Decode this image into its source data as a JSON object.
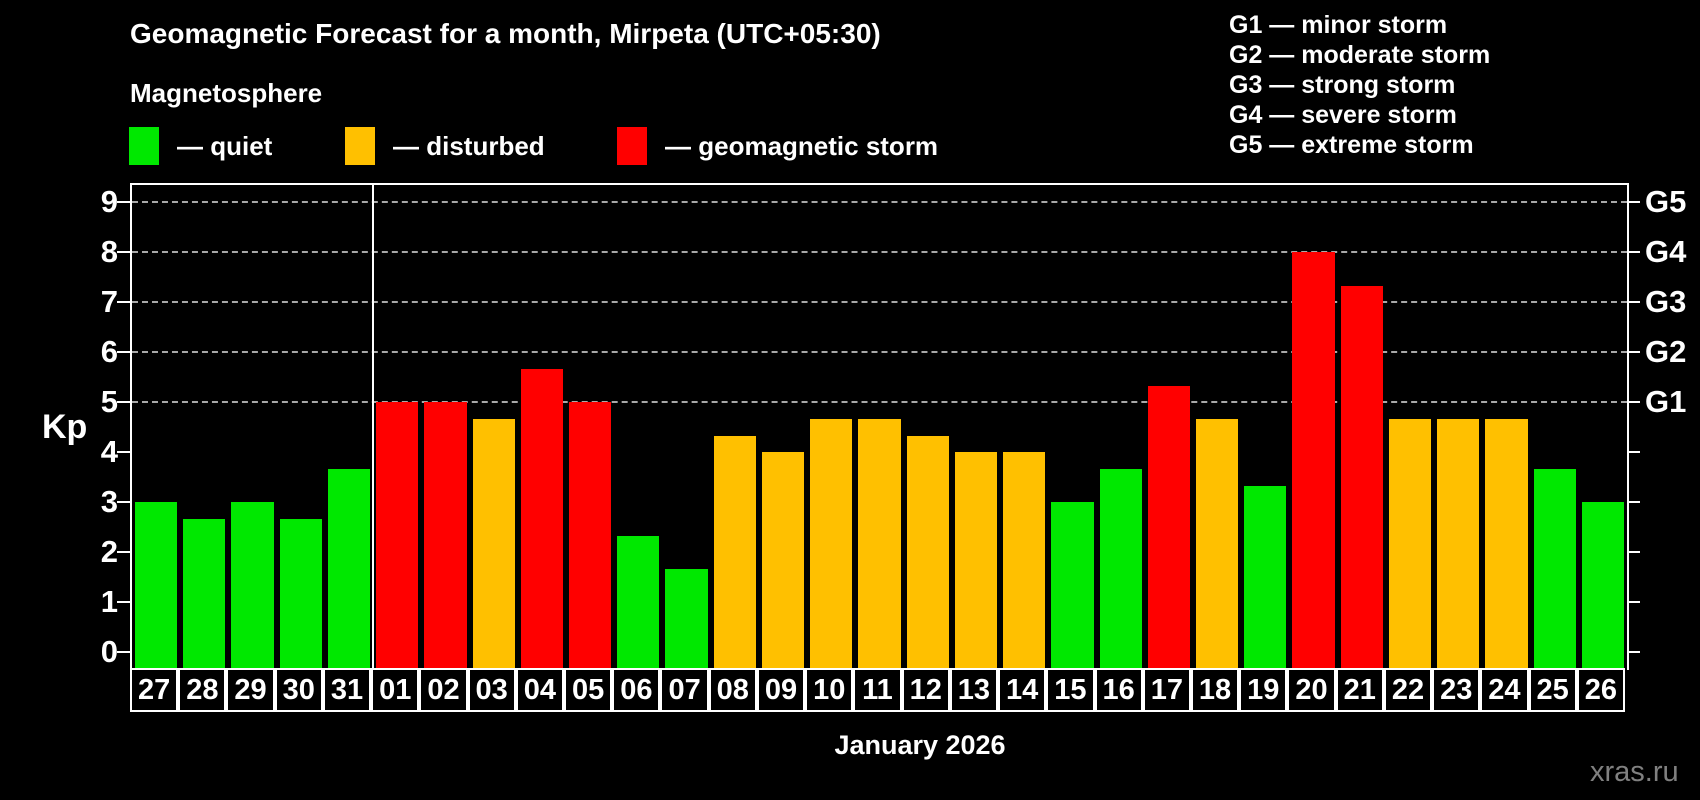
{
  "header": {
    "title": "Geomagnetic Forecast for a month, Mirpeta (UTC+05:30)",
    "subtitle": "Magnetosphere"
  },
  "legend": {
    "items": [
      {
        "label": "— quiet",
        "status": "quiet"
      },
      {
        "label": "— disturbed",
        "status": "disturbed"
      },
      {
        "label": "— geomagnetic storm",
        "status": "storm"
      }
    ]
  },
  "g_legend": [
    "G1 — minor storm",
    "G2 — moderate storm",
    "G3 — strong storm",
    "G4 — severe storm",
    "G5 — extreme storm"
  ],
  "colors": {
    "quiet": "#00e800",
    "disturbed": "#ffc000",
    "storm": "#ff0000",
    "gridline": "#a8a8a8",
    "frame": "#ffffff",
    "background": "#000000",
    "watermark_text": "#808080"
  },
  "axis": {
    "y_label": "Kp",
    "y_ticks": [
      0,
      1,
      2,
      3,
      4,
      5,
      6,
      7,
      8,
      9
    ],
    "gridline_levels": [
      5,
      6,
      7,
      8,
      9
    ],
    "right_scale": [
      {
        "label": "G1",
        "kp": 5
      },
      {
        "label": "G2",
        "kp": 6
      },
      {
        "label": "G3",
        "kp": 7
      },
      {
        "label": "G4",
        "kp": 8
      },
      {
        "label": "G5",
        "kp": 9
      }
    ],
    "x_label": "January 2026"
  },
  "watermark": "xras.ru",
  "chart_data": {
    "type": "bar",
    "title": "Geomagnetic Forecast for a month, Mirpeta (UTC+05:30)",
    "ylabel": "Kp",
    "xlabel": "January 2026",
    "ylim": [
      0,
      9
    ],
    "month_separator_after": "31",
    "categories": [
      "27",
      "28",
      "29",
      "30",
      "31",
      "01",
      "02",
      "03",
      "04",
      "05",
      "06",
      "07",
      "08",
      "09",
      "10",
      "11",
      "12",
      "13",
      "14",
      "15",
      "16",
      "17",
      "18",
      "19",
      "20",
      "21",
      "22",
      "23",
      "24",
      "25",
      "26"
    ],
    "bars": [
      {
        "day": "27",
        "value": 3.0,
        "status": "quiet"
      },
      {
        "day": "28",
        "value": 2.67,
        "status": "quiet"
      },
      {
        "day": "29",
        "value": 3.0,
        "status": "quiet"
      },
      {
        "day": "30",
        "value": 2.67,
        "status": "quiet"
      },
      {
        "day": "31",
        "value": 3.67,
        "status": "quiet"
      },
      {
        "day": "01",
        "value": 5.0,
        "status": "storm"
      },
      {
        "day": "02",
        "value": 5.0,
        "status": "storm"
      },
      {
        "day": "03",
        "value": 4.67,
        "status": "disturbed"
      },
      {
        "day": "04",
        "value": 5.67,
        "status": "storm"
      },
      {
        "day": "05",
        "value": 5.0,
        "status": "storm"
      },
      {
        "day": "06",
        "value": 2.33,
        "status": "quiet"
      },
      {
        "day": "07",
        "value": 1.67,
        "status": "quiet"
      },
      {
        "day": "08",
        "value": 4.33,
        "status": "disturbed"
      },
      {
        "day": "09",
        "value": 4.0,
        "status": "disturbed"
      },
      {
        "day": "10",
        "value": 4.67,
        "status": "disturbed"
      },
      {
        "day": "11",
        "value": 4.67,
        "status": "disturbed"
      },
      {
        "day": "12",
        "value": 4.33,
        "status": "disturbed"
      },
      {
        "day": "13",
        "value": 4.0,
        "status": "disturbed"
      },
      {
        "day": "14",
        "value": 4.0,
        "status": "disturbed"
      },
      {
        "day": "15",
        "value": 3.0,
        "status": "quiet"
      },
      {
        "day": "16",
        "value": 3.67,
        "status": "quiet"
      },
      {
        "day": "17",
        "value": 5.33,
        "status": "storm"
      },
      {
        "day": "18",
        "value": 4.67,
        "status": "disturbed"
      },
      {
        "day": "19",
        "value": 3.33,
        "status": "quiet"
      },
      {
        "day": "20",
        "value": 8.0,
        "status": "storm"
      },
      {
        "day": "21",
        "value": 7.33,
        "status": "storm"
      },
      {
        "day": "22",
        "value": 4.67,
        "status": "disturbed"
      },
      {
        "day": "23",
        "value": 4.67,
        "status": "disturbed"
      },
      {
        "day": "24",
        "value": 4.67,
        "status": "disturbed"
      },
      {
        "day": "25",
        "value": 3.67,
        "status": "quiet"
      },
      {
        "day": "26",
        "value": 3.0,
        "status": "quiet"
      }
    ]
  }
}
